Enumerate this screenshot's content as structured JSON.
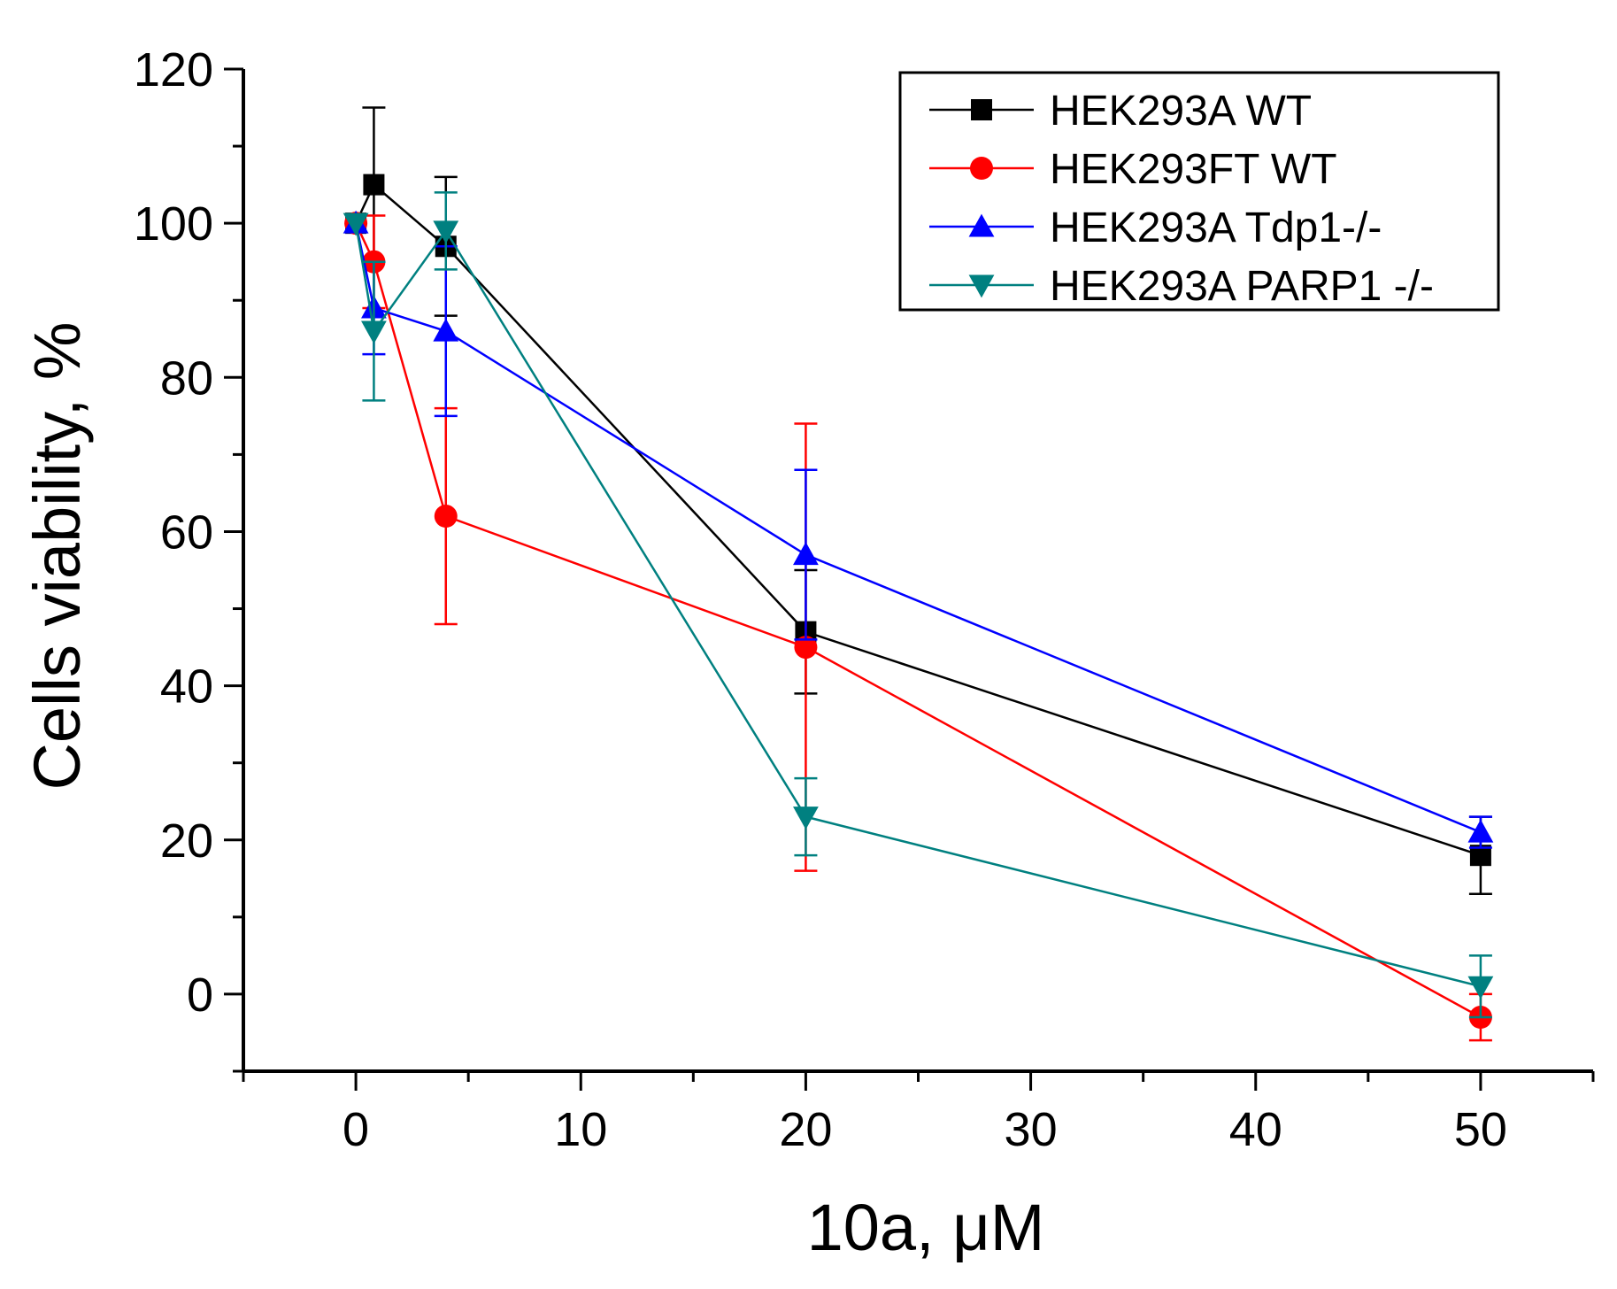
{
  "chart_data": {
    "type": "line",
    "title": "",
    "xlabel": "10a, μM",
    "ylabel": "Cells viability, %",
    "xlim": [
      -5,
      55
    ],
    "ylim": [
      -10,
      120
    ],
    "xticks": [
      0,
      10,
      20,
      30,
      40,
      50
    ],
    "yticks": [
      0,
      20,
      40,
      60,
      80,
      100,
      120
    ],
    "grid": false,
    "legend_position": "top-right",
    "series": [
      {
        "name": "HEK293A WT",
        "color": "#000000",
        "marker": "square",
        "x": [
          0,
          0.8,
          4,
          20,
          50
        ],
        "y": [
          100,
          105,
          97,
          47,
          18
        ],
        "err": [
          0,
          10,
          9,
          8,
          5
        ]
      },
      {
        "name": "HEK293FT WT",
        "color": "#ff0000",
        "marker": "circle",
        "x": [
          0,
          0.8,
          4,
          20,
          50
        ],
        "y": [
          100,
          95,
          62,
          45,
          -3
        ],
        "err": [
          0,
          6,
          14,
          29,
          3
        ]
      },
      {
        "name": "HEK293A Tdp1-/-",
        "color": "#0000ff",
        "marker": "triangle-up",
        "x": [
          0,
          0.8,
          4,
          20,
          50
        ],
        "y": [
          100,
          89,
          86,
          57,
          21
        ],
        "err": [
          0,
          6,
          11,
          11,
          2
        ]
      },
      {
        "name": "HEK293A PARP1 -/-",
        "color": "#008080",
        "marker": "triangle-down",
        "x": [
          0,
          0.8,
          4,
          20,
          50
        ],
        "y": [
          100,
          86,
          99,
          23,
          1
        ],
        "err": [
          0,
          9,
          5,
          5,
          4
        ]
      }
    ]
  }
}
